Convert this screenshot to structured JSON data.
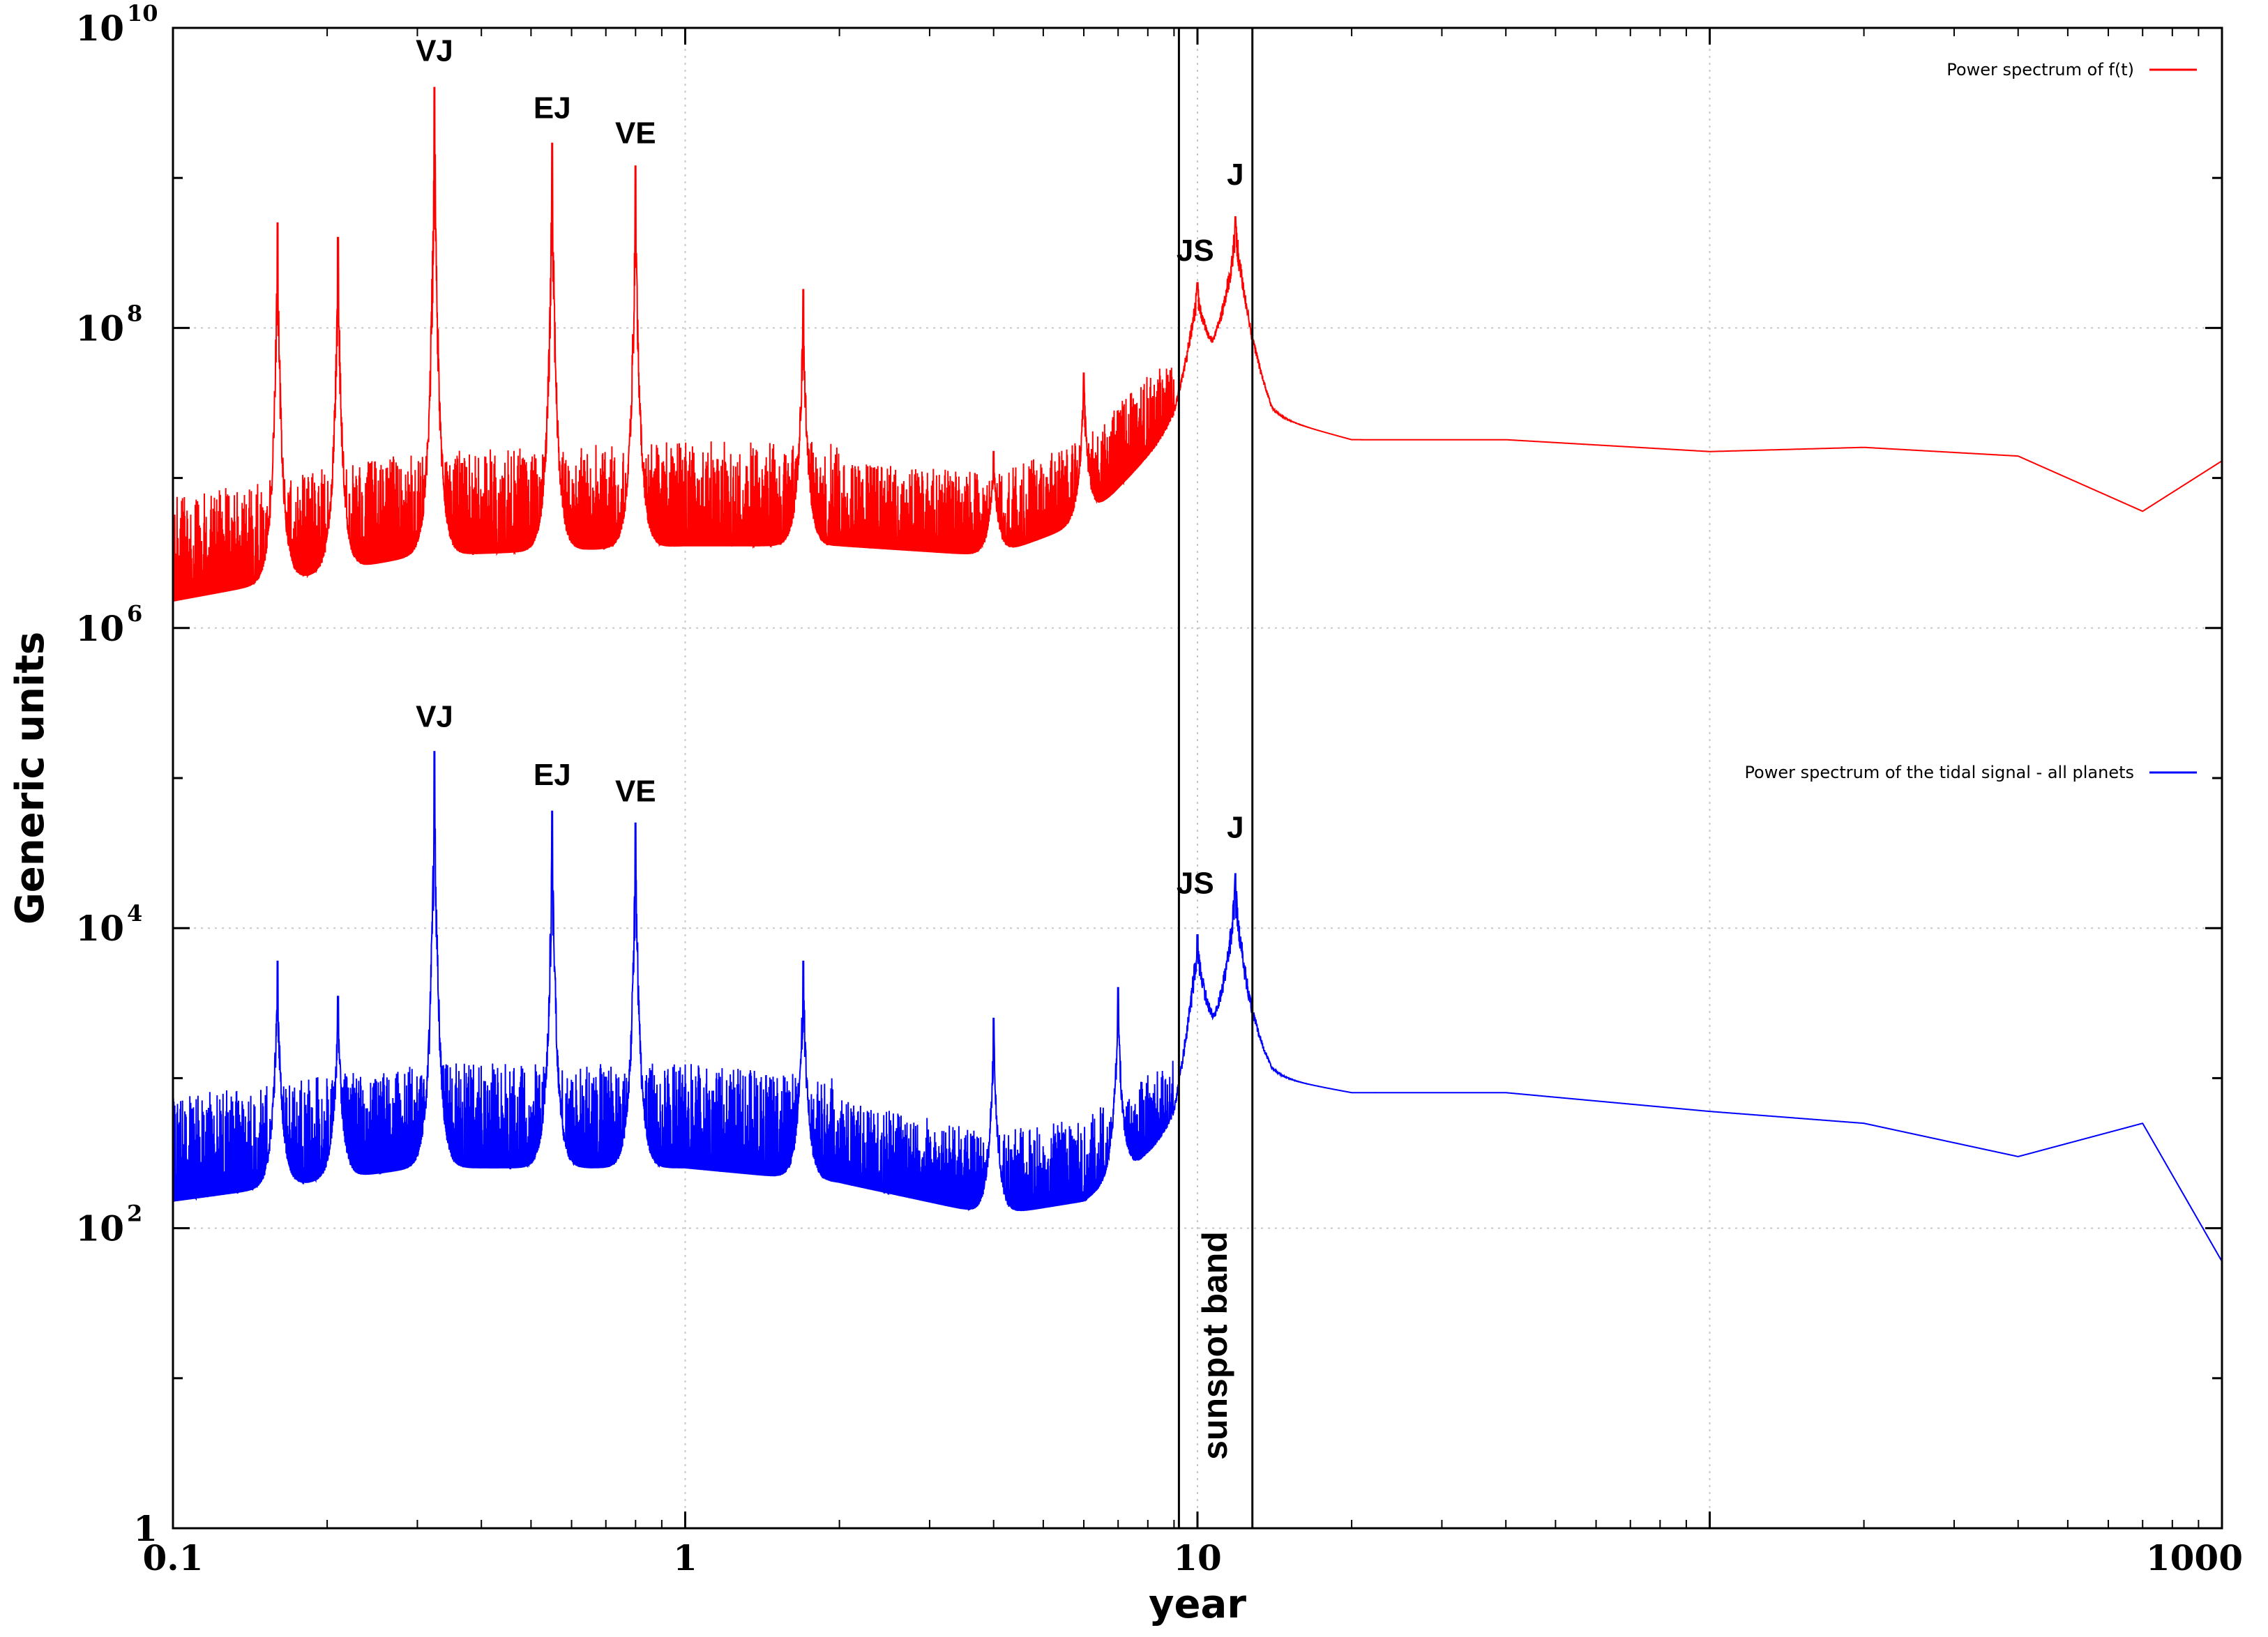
{
  "chart_data": {
    "type": "line",
    "xlabel": "year",
    "ylabel": "Generic units",
    "xscale": "log",
    "yscale": "log",
    "xlim": [
      0.1,
      1000
    ],
    "ylim": [
      1,
      10000000000
    ],
    "grid": true,
    "legend_position": "top-right",
    "x_ticks": [
      {
        "value": 0.1,
        "label": "0.1"
      },
      {
        "value": 1,
        "label": "1"
      },
      {
        "value": 10,
        "label": "10"
      },
      {
        "value": 1000,
        "label": "1000"
      }
    ],
    "y_ticks": [
      {
        "value": 1,
        "base": "1",
        "exp": ""
      },
      {
        "value": 100,
        "base": "10",
        "exp": "2"
      },
      {
        "value": 10000,
        "base": "10",
        "exp": "4"
      },
      {
        "value": 1000000,
        "base": "10",
        "exp": "6"
      },
      {
        "value": 100000000,
        "base": "10",
        "exp": "8"
      },
      {
        "value": 10000000000,
        "base": "10",
        "exp": "10"
      }
    ],
    "series": [
      {
        "name": "Power spectrum of f(t)",
        "color": "#ff0000",
        "baseline": [
          [
            0.1,
            1500000
          ],
          [
            0.3,
            3000000
          ],
          [
            1,
            3500000
          ],
          [
            2,
            3500000
          ],
          [
            4,
            3000000
          ],
          [
            6,
            5000000
          ],
          [
            9,
            20000000
          ],
          [
            10,
            50000000
          ],
          [
            12,
            80000000
          ],
          [
            14,
            25000000
          ],
          [
            20,
            18000000
          ],
          [
            40,
            18000000
          ],
          [
            100,
            15000000
          ],
          [
            200,
            16000000
          ],
          [
            400,
            14000000
          ],
          [
            700,
            6000000
          ],
          [
            1000,
            13000000
          ]
        ],
        "peaks": [
          {
            "x": 0.324,
            "y": 4000000000
          },
          {
            "x": 0.55,
            "y": 1700000000
          },
          {
            "x": 0.8,
            "y": 1200000000
          },
          {
            "x": 0.16,
            "y": 500000000
          },
          {
            "x": 0.21,
            "y": 400000000
          },
          {
            "x": 1.7,
            "y": 180000000
          },
          {
            "x": 4,
            "y": 15000000
          },
          {
            "x": 6,
            "y": 50000000
          },
          {
            "x": 10,
            "y": 200000000
          },
          {
            "x": 11.86,
            "y": 550000000
          }
        ]
      },
      {
        "name": "Power  spectrum of the tidal signal - all planets",
        "color": "#0000ff",
        "baseline": [
          [
            0.1,
            150
          ],
          [
            0.3,
            250
          ],
          [
            1,
            250
          ],
          [
            2,
            200
          ],
          [
            4,
            120
          ],
          [
            6,
            150
          ],
          [
            9,
            400
          ],
          [
            10,
            1500
          ],
          [
            12,
            2000
          ],
          [
            14,
            1000
          ],
          [
            20,
            800
          ],
          [
            40,
            800
          ],
          [
            100,
            600
          ],
          [
            200,
            500
          ],
          [
            400,
            300
          ],
          [
            700,
            500
          ],
          [
            1000,
            60
          ]
        ],
        "peaks": [
          {
            "x": 0.324,
            "y": 150000
          },
          {
            "x": 0.55,
            "y": 60000
          },
          {
            "x": 0.8,
            "y": 50000
          },
          {
            "x": 0.16,
            "y": 6000
          },
          {
            "x": 0.21,
            "y": 3500
          },
          {
            "x": 1.7,
            "y": 6000
          },
          {
            "x": 4,
            "y": 2500
          },
          {
            "x": 7,
            "y": 4000
          },
          {
            "x": 10,
            "y": 9000
          },
          {
            "x": 11.86,
            "y": 23000
          }
        ]
      }
    ],
    "annotations": [
      {
        "text": "VJ",
        "x": 0.324,
        "y": 6000000000
      },
      {
        "text": "EJ",
        "x": 0.55,
        "y": 2500000000
      },
      {
        "text": "VE",
        "x": 0.8,
        "y": 1700000000
      },
      {
        "text": "JS",
        "x": 9.9,
        "y": 280000000
      },
      {
        "text": "J",
        "x": 11.86,
        "y": 900000000
      },
      {
        "text": "VJ",
        "x": 0.324,
        "y": 220000
      },
      {
        "text": "EJ",
        "x": 0.55,
        "y": 90000
      },
      {
        "text": "VE",
        "x": 0.8,
        "y": 70000
      },
      {
        "text": "JS",
        "x": 9.9,
        "y": 17000
      },
      {
        "text": "J",
        "x": 11.86,
        "y": 40000
      }
    ],
    "band": {
      "label": "sunspot band",
      "x_from": 9.2,
      "x_to": 12.8,
      "y_from": 1,
      "y_to": 10000000000
    }
  }
}
